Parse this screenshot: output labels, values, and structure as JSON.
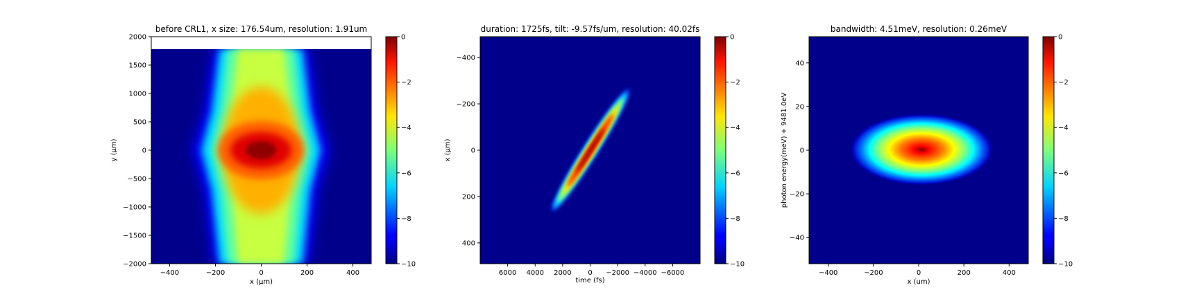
{
  "chart_data": [
    {
      "type": "heatmap",
      "title": "before CRL1, x size: 176.54um, resolution: 1.91um",
      "xlabel": "x (μm)",
      "ylabel": "y (μm)",
      "xlim": [
        -480,
        480
      ],
      "ylim": [
        -2000,
        2000
      ],
      "x_ticks": [
        -400,
        -200,
        0,
        200,
        400
      ],
      "y_ticks": [
        -2000,
        -1500,
        -1000,
        -500,
        0,
        500,
        1000,
        1500,
        2000
      ],
      "y_data_max": 1780,
      "colorbar": {
        "range": [
          -10,
          0
        ],
        "ticks": [
          -10,
          -8,
          -6,
          -4,
          -2,
          0
        ],
        "colormap": "jet"
      }
    },
    {
      "type": "heatmap",
      "title": "duration: 1725fs, tilt: -9.57fs/um, resolution: 40.02fs",
      "xlabel": "time (fs)",
      "ylabel": "x (μm)",
      "xlim": [
        8000,
        -8000
      ],
      "ylim": [
        490,
        -490
      ],
      "x_ticks": [
        6000,
        4000,
        2000,
        0,
        -2000,
        -4000,
        -6000
      ],
      "y_ticks": [
        -400,
        -200,
        0,
        200,
        400
      ],
      "colorbar": {
        "range": [
          -10,
          0
        ],
        "ticks": [
          -10,
          -8,
          -6,
          -4,
          -2,
          0
        ],
        "colormap": "jet"
      }
    },
    {
      "type": "heatmap",
      "title": "bandwidth: 4.51meV, resolution: 0.26meV",
      "xlabel": "x (um)",
      "ylabel": "photon energy(meV) + 9481.0eV",
      "xlim": [
        -485,
        485
      ],
      "ylim": [
        -52,
        52
      ],
      "x_ticks": [
        -400,
        -200,
        0,
        200,
        400
      ],
      "y_ticks": [
        -40,
        -20,
        0,
        20,
        40
      ],
      "colorbar": {
        "range": [
          -10,
          0
        ],
        "ticks": [
          -10,
          -8,
          -6,
          -4,
          -2,
          0
        ],
        "colormap": "jet"
      }
    }
  ]
}
